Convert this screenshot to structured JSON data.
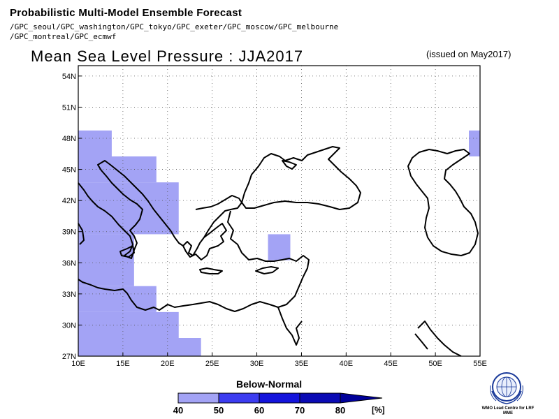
{
  "header": {
    "title": "Probabilistic Multi-Model Ensemble Forecast",
    "models_line1": "/GPC_seoul/GPC_washington/GPC_tokyo/GPC_exeter/GPC_moscow/GPC_melbourne",
    "models_line2": "/GPC_montreal/GPC_ecmwf"
  },
  "map": {
    "title": "Mean Sea Level Pressure : JJA2017",
    "issued": "(issued on May2017)",
    "lon_range": [
      10,
      55
    ],
    "lat_range": [
      27,
      55
    ],
    "lon_ticks": [
      "10E",
      "15E",
      "20E",
      "25E",
      "30E",
      "35E",
      "40E",
      "45E",
      "50E",
      "55E"
    ],
    "lat_ticks": [
      "27N",
      "30N",
      "33N",
      "36N",
      "39N",
      "42N",
      "45N",
      "48N",
      "51N",
      "54N"
    ],
    "below_normal_color": "#a3a3f5",
    "below_normal_cells": [
      {
        "lon": [
          10,
          13.75
        ],
        "lat": [
          46.25,
          48.75
        ],
        "category": "40-50"
      },
      {
        "lon": [
          10,
          18.75
        ],
        "lat": [
          43.75,
          46.25
        ],
        "category": "40-50"
      },
      {
        "lon": [
          10,
          21.25
        ],
        "lat": [
          38.75,
          43.75
        ],
        "category": "40-50"
      },
      {
        "lon": [
          10,
          16.25
        ],
        "lat": [
          33.75,
          38.75
        ],
        "category": "40-50"
      },
      {
        "lon": [
          10,
          18.75
        ],
        "lat": [
          31.25,
          33.75
        ],
        "category": "40-50"
      },
      {
        "lon": [
          10,
          21.25
        ],
        "lat": [
          28.75,
          31.25
        ],
        "category": "40-50"
      },
      {
        "lon": [
          10,
          23.75
        ],
        "lat": [
          27,
          28.75
        ],
        "category": "40-50"
      },
      {
        "lon": [
          31.25,
          33.75
        ],
        "lat": [
          36.25,
          38.75
        ],
        "category": "40-50"
      },
      {
        "lon": [
          53.75,
          55
        ],
        "lat": [
          46.25,
          48.75
        ],
        "category": "40-50"
      }
    ]
  },
  "legend": {
    "title": "Below-Normal",
    "ticks": [
      "40",
      "50",
      "60",
      "70",
      "80"
    ],
    "unit": "[%]",
    "colors": [
      "#a3a3f5",
      "#3c3cf0",
      "#1414dc",
      "#0a0ab4",
      "#00009a"
    ]
  },
  "logo": {
    "text": "WMO Lead Centre for LRF MME"
  }
}
